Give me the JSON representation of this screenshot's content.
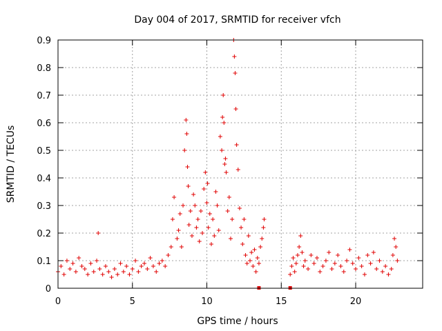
{
  "chart_data": {
    "type": "scatter",
    "title": "Day 004 of 2017, SRMTID for receiver vfch",
    "xlabel": "GPS time / hours",
    "ylabel": "SRMTID / TECUs",
    "xlim": [
      0,
      24.5
    ],
    "ylim": [
      0,
      0.9
    ],
    "xticks": [
      0,
      5,
      10,
      15,
      20
    ],
    "xtick_labels": [
      "0",
      "5",
      "10",
      "15",
      "20"
    ],
    "yticks": [
      0,
      0.1,
      0.2,
      0.3,
      0.4,
      0.5,
      0.6,
      0.7,
      0.8,
      0.9
    ],
    "ytick_labels": [
      "0",
      "0.1",
      "0.2",
      "0.3",
      "0.4",
      "0.5",
      "0.6",
      "0.7",
      "0.8",
      "0.9"
    ],
    "grid": true,
    "marker": "plus",
    "color": "#e00000",
    "series": [
      {
        "name": "SRMTID",
        "x": [
          0.0,
          0.2,
          0.4,
          0.6,
          0.8,
          1.0,
          1.2,
          1.4,
          1.6,
          1.8,
          2.0,
          2.2,
          2.4,
          2.6,
          2.7,
          2.8,
          3.0,
          3.2,
          3.4,
          3.6,
          3.8,
          4.0,
          4.2,
          4.4,
          4.6,
          4.8,
          5.0,
          5.2,
          5.4,
          5.6,
          5.8,
          6.0,
          6.2,
          6.4,
          6.6,
          6.8,
          7.0,
          7.2,
          7.4,
          7.6,
          7.7,
          7.8,
          8.0,
          8.1,
          8.2,
          8.3,
          8.4,
          8.5,
          8.6,
          8.65,
          8.7,
          8.75,
          8.8,
          8.9,
          9.0,
          9.1,
          9.2,
          9.3,
          9.4,
          9.5,
          9.6,
          9.7,
          9.8,
          9.9,
          10.0,
          10.05,
          10.1,
          10.2,
          10.3,
          10.4,
          10.5,
          10.6,
          10.7,
          10.8,
          10.9,
          11.0,
          11.05,
          11.1,
          11.15,
          11.2,
          11.25,
          11.3,
          11.4,
          11.5,
          11.6,
          11.7,
          11.8,
          11.85,
          11.9,
          11.95,
          12.0,
          12.1,
          12.2,
          12.3,
          12.4,
          12.5,
          12.6,
          12.7,
          12.8,
          12.9,
          13.0,
          13.1,
          13.2,
          13.3,
          13.4,
          13.5,
          13.6,
          13.7,
          13.8,
          13.85,
          15.6,
          15.7,
          15.8,
          15.9,
          16.0,
          16.1,
          16.2,
          16.3,
          16.4,
          16.5,
          16.6,
          16.8,
          17.0,
          17.2,
          17.4,
          17.6,
          17.8,
          18.0,
          18.2,
          18.4,
          18.6,
          18.8,
          19.0,
          19.2,
          19.4,
          19.6,
          19.8,
          20.0,
          20.2,
          20.4,
          20.6,
          20.8,
          21.0,
          21.2,
          21.4,
          21.6,
          21.8,
          22.0,
          22.2,
          22.4,
          22.5,
          22.6,
          22.7,
          22.8
        ],
        "y": [
          0.06,
          0.08,
          0.05,
          0.1,
          0.07,
          0.09,
          0.06,
          0.11,
          0.08,
          0.07,
          0.05,
          0.09,
          0.06,
          0.1,
          0.2,
          0.07,
          0.05,
          0.08,
          0.06,
          0.04,
          0.07,
          0.05,
          0.09,
          0.06,
          0.08,
          0.05,
          0.07,
          0.1,
          0.06,
          0.08,
          0.09,
          0.07,
          0.11,
          0.08,
          0.06,
          0.09,
          0.1,
          0.08,
          0.12,
          0.15,
          0.25,
          0.33,
          0.18,
          0.21,
          0.27,
          0.15,
          0.3,
          0.5,
          0.61,
          0.56,
          0.44,
          0.37,
          0.23,
          0.28,
          0.19,
          0.34,
          0.3,
          0.22,
          0.25,
          0.17,
          0.28,
          0.2,
          0.36,
          0.42,
          0.31,
          0.38,
          0.22,
          0.27,
          0.16,
          0.25,
          0.19,
          0.35,
          0.3,
          0.21,
          0.55,
          0.5,
          0.62,
          0.7,
          0.6,
          0.45,
          0.47,
          0.42,
          0.28,
          0.33,
          0.18,
          0.25,
          0.9,
          0.84,
          0.78,
          0.65,
          0.52,
          0.43,
          0.29,
          0.22,
          0.16,
          0.25,
          0.12,
          0.09,
          0.19,
          0.1,
          0.13,
          0.08,
          0.14,
          0.06,
          0.11,
          0.09,
          0.15,
          0.18,
          0.22,
          0.25,
          0.05,
          0.08,
          0.11,
          0.06,
          0.09,
          0.12,
          0.15,
          0.19,
          0.13,
          0.08,
          0.1,
          0.07,
          0.12,
          0.09,
          0.11,
          0.06,
          0.08,
          0.1,
          0.13,
          0.07,
          0.09,
          0.12,
          0.08,
          0.06,
          0.1,
          0.14,
          0.09,
          0.07,
          0.11,
          0.08,
          0.05,
          0.12,
          0.09,
          0.13,
          0.07,
          0.1,
          0.06,
          0.08,
          0.05,
          0.07,
          0.12,
          0.18,
          0.15,
          0.1
        ],
        "marker_flags": [
          {
            "x": 13.5,
            "y": 0
          },
          {
            "x": 15.6,
            "y": 0
          }
        ]
      }
    ]
  }
}
